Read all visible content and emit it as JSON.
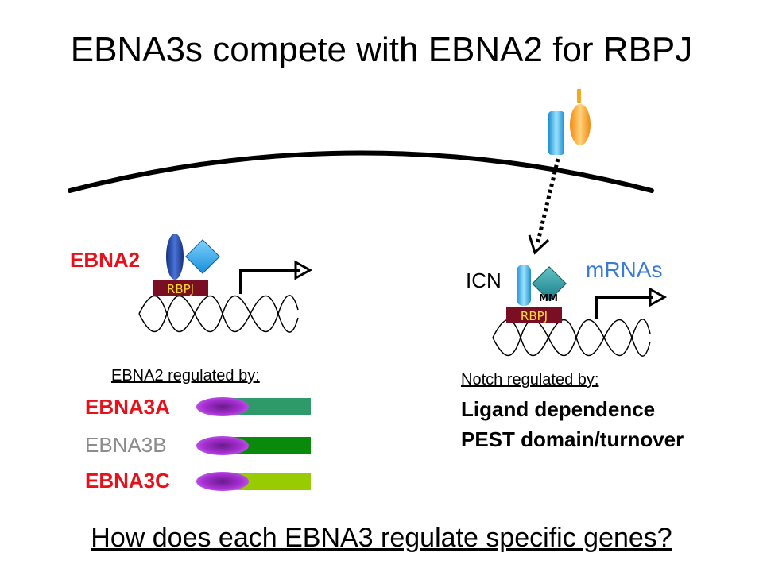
{
  "title": "EBNA3s compete with EBNA2 for RBPJ",
  "left_complex": {
    "label": "EBNA2",
    "rbpj_label": "RBPJ"
  },
  "right_complex": {
    "icn_label": "ICN",
    "mm_label": "MM",
    "rbpj_label": "RBPJ",
    "mrnas_label": "mRNAs"
  },
  "ebna2_regulation": {
    "heading": "EBNA2 regulated by:",
    "items": [
      {
        "label": "EBNA3A",
        "label_color": "#e8101a",
        "bar_color": "#2e9a6a"
      },
      {
        "label": "EBNA3B",
        "label_color": "#8c8c8c",
        "bar_color": "#0a8a0a"
      },
      {
        "label": "EBNA3C",
        "label_color": "#e8101a",
        "bar_color": "#99cc00"
      }
    ]
  },
  "notch_regulation": {
    "heading": "Notch regulated by:",
    "items": [
      "Ligand dependence",
      "PEST domain/turnover"
    ]
  },
  "question": "How does each EBNA3 regulate specific genes?",
  "colors": {
    "rbpj_box": "#7a0f24",
    "rbpj_text": "#ffdd33",
    "ebna2_red": "#e8101a",
    "notch_blue": "#3ab0e8",
    "ligand_orange": "#f7a823",
    "purple": "#9b1fc4",
    "dna": "#000000"
  },
  "icons": [
    "membrane-arc",
    "notch-receptor-icon",
    "ligand-icon",
    "dna-helix-icon",
    "promoter-arrow-icon"
  ]
}
